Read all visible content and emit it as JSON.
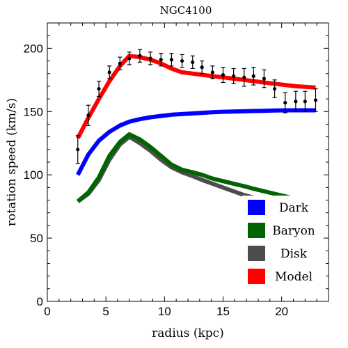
{
  "chart_data": {
    "type": "line",
    "title": "NGC4100",
    "xlabel": "radius (kpc)",
    "ylabel": "rotation speed (km/s)",
    "xlim": [
      0,
      24
    ],
    "ylim": [
      0,
      220
    ],
    "x_major_ticks": [
      0,
      5,
      10,
      15,
      20
    ],
    "y_major_ticks": [
      0,
      50,
      100,
      150,
      200
    ],
    "legend_position": "bottom-right",
    "series": [
      {
        "name": "Dark",
        "color": "#0000ff",
        "x": [
          2.6,
          3.5,
          4.4,
          5.3,
          6.2,
          7.0,
          7.9,
          8.8,
          9.7,
          10.6,
          11.5,
          12.4,
          13.2,
          14.1,
          15.0,
          15.9,
          16.8,
          17.6,
          18.5,
          19.4,
          20.3,
          21.2,
          22.9
        ],
        "values": [
          100,
          116,
          127,
          134,
          139,
          142,
          144,
          145.5,
          146.5,
          147.5,
          148,
          148.5,
          149,
          149.5,
          149.8,
          150,
          150.2,
          150.4,
          150.6,
          150.8,
          151,
          151,
          151
        ]
      },
      {
        "name": "Baryon",
        "color": "#006400",
        "x": [
          2.6,
          3.5,
          4.4,
          5.3,
          6.2,
          7.0,
          7.9,
          8.8,
          9.7,
          10.6,
          11.5,
          12.4,
          13.2,
          14.1,
          15.0,
          15.9,
          16.8,
          17.6,
          18.5,
          19.4,
          20.3,
          21.2,
          22.9
        ],
        "values": [
          79,
          86,
          98,
          115,
          126,
          132,
          128,
          122,
          115,
          108,
          104,
          102,
          100,
          97,
          95,
          93,
          91,
          89,
          87,
          85,
          83,
          81,
          79
        ]
      },
      {
        "name": "Disk",
        "color": "#4d4d4d",
        "x": [
          2.6,
          3.5,
          4.4,
          5.3,
          6.2,
          7.0,
          7.9,
          8.8,
          9.7,
          10.6,
          11.5,
          12.4,
          13.2,
          14.1,
          15.0,
          15.9,
          16.8,
          17.6,
          18.5,
          19.4,
          20.3,
          21.2,
          22.9
        ],
        "values": [
          79,
          85,
          96,
          112,
          124,
          130,
          125,
          119,
          112,
          106,
          102,
          99,
          96,
          93,
          90,
          87,
          84,
          82,
          80,
          78,
          76,
          74,
          71
        ]
      },
      {
        "name": "Model",
        "color": "#ff0000",
        "x": [
          2.6,
          3.5,
          4.4,
          5.3,
          6.2,
          7.0,
          7.9,
          8.8,
          9.7,
          10.6,
          11.5,
          12.4,
          13.2,
          14.1,
          15.0,
          15.9,
          16.8,
          17.6,
          18.5,
          19.4,
          20.3,
          21.2,
          22.9
        ],
        "values": [
          129,
          145,
          160,
          174,
          186,
          194,
          193,
          191,
          188,
          184,
          181,
          180,
          179,
          178,
          177,
          176,
          175,
          174,
          173,
          172,
          171,
          170,
          169
        ]
      }
    ],
    "data_points": {
      "x": [
        2.6,
        3.5,
        4.4,
        5.3,
        6.2,
        7.0,
        7.9,
        8.8,
        9.7,
        10.6,
        11.5,
        12.4,
        13.2,
        14.1,
        15.0,
        15.9,
        16.8,
        17.6,
        18.5,
        19.4,
        20.3,
        21.2,
        22.0,
        22.9
      ],
      "y": [
        120,
        147,
        168,
        181,
        188,
        192,
        194,
        192,
        191,
        191,
        190,
        189,
        185,
        181,
        179,
        178,
        177,
        178,
        176,
        168,
        157,
        158,
        158,
        159
      ],
      "err": [
        11,
        8,
        6,
        5,
        5,
        5,
        5,
        5,
        5,
        5,
        5,
        5,
        5,
        5,
        6,
        6,
        7,
        7,
        7,
        7,
        8,
        8,
        8,
        9
      ]
    }
  }
}
